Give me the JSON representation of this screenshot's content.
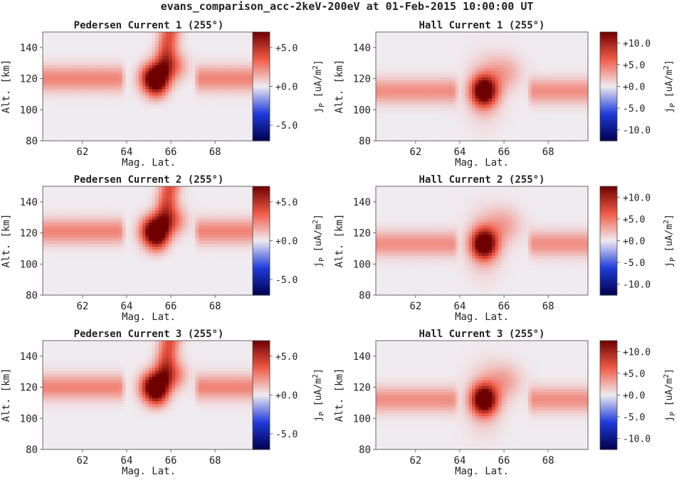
{
  "figure": {
    "suptitle": "evans_comparison_acc-2keV-200eV at 01-Feb-2015 10:00:00 UT"
  },
  "chart_data": [
    {
      "type": "heatmap",
      "kind": "pedersen",
      "title": "Pedersen Current 1 (255°)",
      "xlabel": "Mag. Lat.",
      "ylabel": "Alt. [km]",
      "xlim": [
        60.2,
        69.8
      ],
      "ylim": [
        80,
        150
      ],
      "xticks": [
        "62",
        "64",
        "66",
        "68"
      ],
      "yticks": [
        "80",
        "100",
        "120",
        "140"
      ],
      "colorbar": {
        "label": "jP [uA/m2]",
        "min": -7,
        "max": 7,
        "tick_values": [
          5,
          0,
          -5
        ],
        "tick_labels": [
          "+5.0",
          "+0.0",
          "-5.0"
        ]
      },
      "features": {
        "band_alt_km": 120,
        "band_value": 2.5,
        "gap_lat": [
          64.0,
          67.0
        ],
        "blob_lat": 65.2,
        "blob_alt_km": 120,
        "blob_value": 8,
        "arc_value": 4
      }
    },
    {
      "type": "heatmap",
      "kind": "hall",
      "title": "Hall Current 1 (255°)",
      "xlabel": "Mag. Lat.",
      "ylabel": "Alt. [km]",
      "xlim": [
        60.2,
        69.8
      ],
      "ylim": [
        80,
        150
      ],
      "xticks": [
        "62",
        "64",
        "66",
        "68"
      ],
      "yticks": [
        "80",
        "100",
        "120",
        "140"
      ],
      "colorbar": {
        "label": "jP [uA/m2]",
        "min": -12.5,
        "max": 12.5,
        "tick_values": [
          10,
          5,
          0,
          -5,
          -10
        ],
        "tick_labels": [
          "+10.0",
          "+5.0",
          "+0.0",
          "-5.0",
          "-10.0"
        ]
      },
      "features": {
        "band_alt_km": 112,
        "band_value": 4,
        "gap_lat": [
          64.0,
          67.0
        ],
        "blob_lat": 65.1,
        "blob_alt_km": 112,
        "blob_value": 15,
        "arc_value": 3
      }
    },
    {
      "type": "heatmap",
      "kind": "pedersen",
      "title": "Pedersen Current 2 (255°)",
      "xlabel": "Mag. Lat.",
      "ylabel": "Alt. [km]",
      "xlim": [
        60.2,
        69.8
      ],
      "ylim": [
        80,
        150
      ],
      "xticks": [
        "62",
        "64",
        "66",
        "68"
      ],
      "yticks": [
        "80",
        "100",
        "120",
        "140"
      ],
      "colorbar": {
        "label": "jP [uA/m2]",
        "min": -7,
        "max": 7,
        "tick_values": [
          5,
          0,
          -5
        ],
        "tick_labels": [
          "+5.0",
          "+0.0",
          "-5.0"
        ]
      },
      "features": {
        "band_alt_km": 121,
        "band_value": 2.5,
        "gap_lat": [
          64.0,
          67.0
        ],
        "blob_lat": 65.2,
        "blob_alt_km": 121,
        "blob_value": 8,
        "arc_value": 4
      }
    },
    {
      "type": "heatmap",
      "kind": "hall",
      "title": "Hall Current 2 (255°)",
      "xlabel": "Mag. Lat.",
      "ylabel": "Alt. [km]",
      "xlim": [
        60.2,
        69.8
      ],
      "ylim": [
        80,
        150
      ],
      "xticks": [
        "62",
        "64",
        "66",
        "68"
      ],
      "yticks": [
        "80",
        "100",
        "120",
        "140"
      ],
      "colorbar": {
        "label": "jP [uA/m2]",
        "min": -12.5,
        "max": 12.5,
        "tick_values": [
          10,
          5,
          0,
          -5,
          -10
        ],
        "tick_labels": [
          "+10.0",
          "+5.0",
          "+0.0",
          "-5.0",
          "-10.0"
        ]
      },
      "features": {
        "band_alt_km": 113,
        "band_value": 4,
        "gap_lat": [
          64.0,
          67.0
        ],
        "blob_lat": 65.1,
        "blob_alt_km": 113,
        "blob_value": 15,
        "arc_value": 3
      }
    },
    {
      "type": "heatmap",
      "kind": "pedersen",
      "title": "Pedersen Current 3 (255°)",
      "xlabel": "Mag. Lat.",
      "ylabel": "Alt. [km]",
      "xlim": [
        60.2,
        69.8
      ],
      "ylim": [
        80,
        150
      ],
      "xticks": [
        "62",
        "64",
        "66",
        "68"
      ],
      "yticks": [
        "80",
        "100",
        "120",
        "140"
      ],
      "colorbar": {
        "label": "jP [uA/m2]",
        "min": -7,
        "max": 7,
        "tick_values": [
          5,
          0,
          -5
        ],
        "tick_labels": [
          "+5.0",
          "+0.0",
          "-5.0"
        ]
      },
      "features": {
        "band_alt_km": 120,
        "band_value": 2.5,
        "gap_lat": [
          64.0,
          67.0
        ],
        "blob_lat": 65.2,
        "blob_alt_km": 120,
        "blob_value": 8,
        "arc_value": 4
      }
    },
    {
      "type": "heatmap",
      "kind": "hall",
      "title": "Hall Current 3 (255°)",
      "xlabel": "Mag. Lat.",
      "ylabel": "Alt. [km]",
      "xlim": [
        60.2,
        69.8
      ],
      "ylim": [
        80,
        150
      ],
      "xticks": [
        "62",
        "64",
        "66",
        "68"
      ],
      "yticks": [
        "80",
        "100",
        "120",
        "140"
      ],
      "colorbar": {
        "label": "jP [uA/m2]",
        "min": -12.5,
        "max": 12.5,
        "tick_values": [
          10,
          5,
          0,
          -5,
          -10
        ],
        "tick_labels": [
          "+10.0",
          "+5.0",
          "+0.0",
          "-5.0",
          "-10.0"
        ]
      },
      "features": {
        "band_alt_km": 112,
        "band_value": 4,
        "gap_lat": [
          64.0,
          67.0
        ],
        "blob_lat": 65.1,
        "blob_alt_km": 112,
        "blob_value": 15,
        "arc_value": 3
      }
    }
  ]
}
